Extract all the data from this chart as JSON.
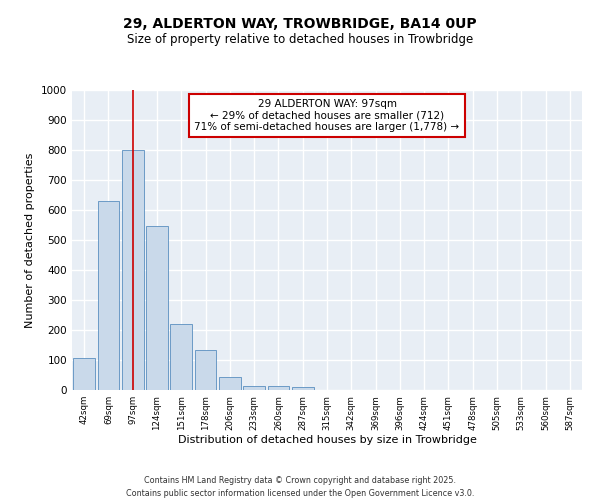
{
  "title_line1": "29, ALDERTON WAY, TROWBRIDGE, BA14 0UP",
  "title_line2": "Size of property relative to detached houses in Trowbridge",
  "xlabel": "Distribution of detached houses by size in Trowbridge",
  "ylabel": "Number of detached properties",
  "categories": [
    "42sqm",
    "69sqm",
    "97sqm",
    "124sqm",
    "151sqm",
    "178sqm",
    "206sqm",
    "233sqm",
    "260sqm",
    "287sqm",
    "315sqm",
    "342sqm",
    "369sqm",
    "396sqm",
    "424sqm",
    "451sqm",
    "478sqm",
    "505sqm",
    "533sqm",
    "560sqm",
    "587sqm"
  ],
  "values": [
    108,
    630,
    800,
    548,
    220,
    135,
    42,
    15,
    12,
    10,
    0,
    0,
    0,
    0,
    0,
    0,
    0,
    0,
    0,
    0,
    0
  ],
  "bar_color": "#c9d9ea",
  "bar_edge_color": "#5a8fc0",
  "red_line_index": 2,
  "annotation_line1": "29 ALDERTON WAY: 97sqm",
  "annotation_line2": "← 29% of detached houses are smaller (712)",
  "annotation_line3": "71% of semi-detached houses are larger (1,778) →",
  "annotation_box_facecolor": "#ffffff",
  "annotation_box_edgecolor": "#cc0000",
  "ylim": [
    0,
    1000
  ],
  "yticks": [
    0,
    100,
    200,
    300,
    400,
    500,
    600,
    700,
    800,
    900,
    1000
  ],
  "plot_bg_color": "#e8eef5",
  "fig_bg_color": "#ffffff",
  "grid_color": "#ffffff",
  "footer_line1": "Contains HM Land Registry data © Crown copyright and database right 2025.",
  "footer_line2": "Contains public sector information licensed under the Open Government Licence v3.0."
}
